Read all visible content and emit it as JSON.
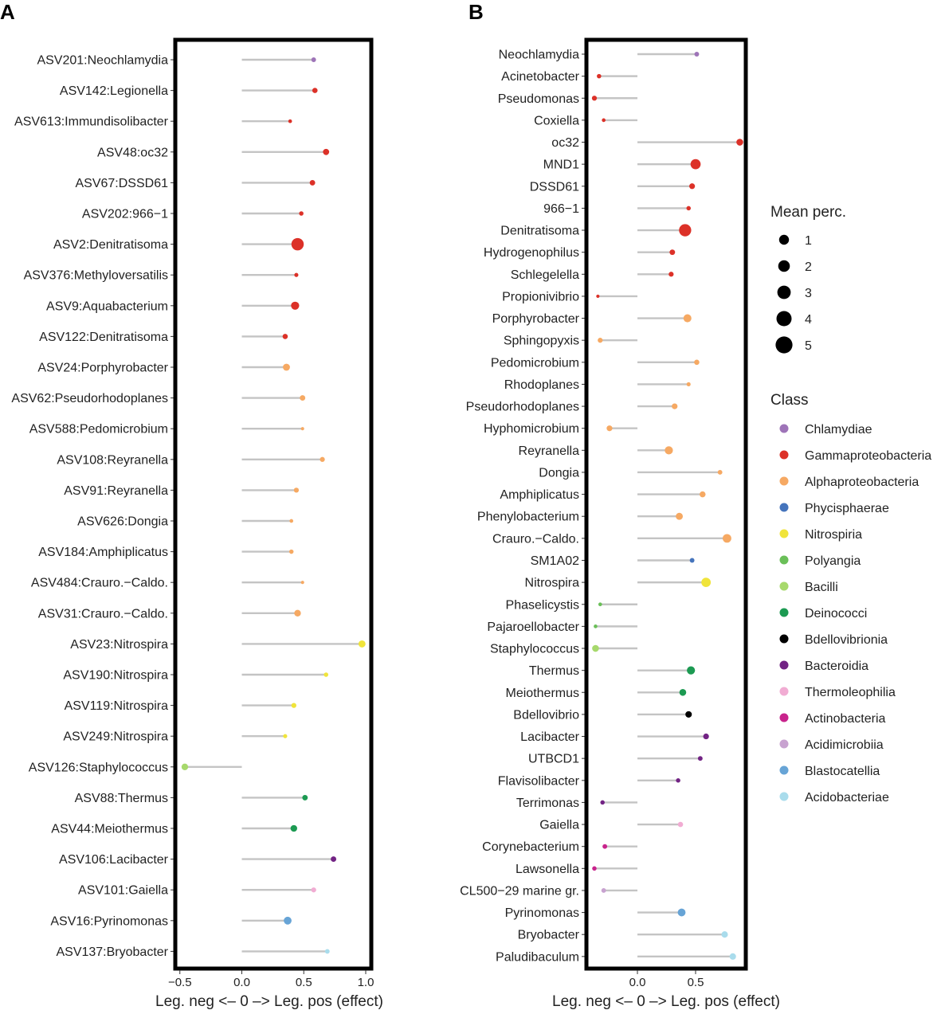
{
  "chart_data": [
    {
      "panel": "A",
      "type": "lollipop",
      "xlabel": "Leg. neg <– 0 –> Leg. pos (effect)",
      "ylabel": "",
      "xlim": [
        -0.55,
        1.05
      ],
      "xticks": [
        -0.5,
        0.0,
        0.5,
        1.0
      ],
      "xtick_labels": [
        "−0.5",
        "0.0",
        "0.5",
        "1.0"
      ],
      "legend": "none",
      "grid": false,
      "points": [
        {
          "label": "ASV201:Neochlamydia",
          "value": 0.58,
          "mean_perc": 0.8,
          "class": "Chlamydiae"
        },
        {
          "label": "ASV142:Legionella",
          "value": 0.59,
          "mean_perc": 1.0,
          "class": "Gammaproteobacteria"
        },
        {
          "label": "ASV613:Immundisolibacter",
          "value": 0.39,
          "mean_perc": 0.5,
          "class": "Gammaproteobacteria"
        },
        {
          "label": "ASV48:oc32",
          "value": 0.68,
          "mean_perc": 1.4,
          "class": "Gammaproteobacteria"
        },
        {
          "label": "ASV67:DSSD61",
          "value": 0.57,
          "mean_perc": 1.1,
          "class": "Gammaproteobacteria"
        },
        {
          "label": "ASV202:966−1",
          "value": 0.48,
          "mean_perc": 0.7,
          "class": "Gammaproteobacteria"
        },
        {
          "label": "ASV2:Denitratisoma",
          "value": 0.45,
          "mean_perc": 5.5,
          "class": "Gammaproteobacteria"
        },
        {
          "label": "ASV376:Methyloversatilis",
          "value": 0.44,
          "mean_perc": 0.6,
          "class": "Gammaproteobacteria"
        },
        {
          "label": "ASV9:Aquabacterium",
          "value": 0.43,
          "mean_perc": 2.4,
          "class": "Gammaproteobacteria"
        },
        {
          "label": "ASV122:Denitratisoma",
          "value": 0.35,
          "mean_perc": 1.0,
          "class": "Gammaproteobacteria"
        },
        {
          "label": "ASV24:Porphyrobacter",
          "value": 0.36,
          "mean_perc": 1.8,
          "class": "Alphaproteobacteria"
        },
        {
          "label": "ASV62:Pseudorhodoplanes",
          "value": 0.49,
          "mean_perc": 1.1,
          "class": "Alphaproteobacteria"
        },
        {
          "label": "ASV588:Pedomicrobium",
          "value": 0.49,
          "mean_perc": 0.4,
          "class": "Alphaproteobacteria"
        },
        {
          "label": "ASV108:Reyranella",
          "value": 0.65,
          "mean_perc": 0.9,
          "class": "Alphaproteobacteria"
        },
        {
          "label": "ASV91:Reyranella",
          "value": 0.44,
          "mean_perc": 0.9,
          "class": "Alphaproteobacteria"
        },
        {
          "label": "ASV626:Dongia",
          "value": 0.4,
          "mean_perc": 0.5,
          "class": "Alphaproteobacteria"
        },
        {
          "label": "ASV184:Amphiplicatus",
          "value": 0.4,
          "mean_perc": 0.7,
          "class": "Alphaproteobacteria"
        },
        {
          "label": "ASV484:Crauro.−Caldo.",
          "value": 0.49,
          "mean_perc": 0.4,
          "class": "Alphaproteobacteria"
        },
        {
          "label": "ASV31:Crauro.−Caldo.",
          "value": 0.45,
          "mean_perc": 1.6,
          "class": "Alphaproteobacteria"
        },
        {
          "label": "ASV23:Nitrospira",
          "value": 0.97,
          "mean_perc": 1.8,
          "class": "Nitrospiria"
        },
        {
          "label": "ASV190:Nitrospira",
          "value": 0.68,
          "mean_perc": 0.7,
          "class": "Nitrospiria"
        },
        {
          "label": "ASV119:Nitrospira",
          "value": 0.42,
          "mean_perc": 0.9,
          "class": "Nitrospiria"
        },
        {
          "label": "ASV249:Nitrospira",
          "value": 0.35,
          "mean_perc": 0.6,
          "class": "Nitrospiria"
        },
        {
          "label": "ASV126:Staphylococcus",
          "value": -0.46,
          "mean_perc": 1.6,
          "class": "Bacilli"
        },
        {
          "label": "ASV88:Thermus",
          "value": 0.51,
          "mean_perc": 1.1,
          "class": "Deinococci"
        },
        {
          "label": "ASV44:Meiothermus",
          "value": 0.42,
          "mean_perc": 1.6,
          "class": "Deinococci"
        },
        {
          "label": "ASV106:Lacibacter",
          "value": 0.74,
          "mean_perc": 1.1,
          "class": "Bacteroidia"
        },
        {
          "label": "ASV101:Gaiella",
          "value": 0.58,
          "mean_perc": 0.9,
          "class": "Thermoleophilia"
        },
        {
          "label": "ASV16:Pyrinomonas",
          "value": 0.37,
          "mean_perc": 2.2,
          "class": "Blastocatellia"
        },
        {
          "label": "ASV137:Bryobacter",
          "value": 0.69,
          "mean_perc": 0.8,
          "class": "Acidobacteriae"
        }
      ]
    },
    {
      "panel": "B",
      "type": "lollipop",
      "xlabel": "Leg. neg <– 0 –> Leg. pos (effect)",
      "ylabel": "",
      "xlim": [
        -0.45,
        0.95
      ],
      "xticks": [
        0.0,
        0.5
      ],
      "xtick_labels": [
        "0.0",
        "0.5"
      ],
      "legend": "right",
      "grid": false,
      "points": [
        {
          "label": "Neochlamydia",
          "value": 0.51,
          "mean_perc": 0.8,
          "class": "Chlamydiae"
        },
        {
          "label": "Acinetobacter",
          "value": -0.33,
          "mean_perc": 0.7,
          "class": "Gammaproteobacteria"
        },
        {
          "label": "Pseudomonas",
          "value": -0.37,
          "mean_perc": 0.9,
          "class": "Gammaproteobacteria"
        },
        {
          "label": "Coxiella",
          "value": -0.29,
          "mean_perc": 0.5,
          "class": "Gammaproteobacteria"
        },
        {
          "label": "oc32",
          "value": 0.88,
          "mean_perc": 1.7,
          "class": "Gammaproteobacteria"
        },
        {
          "label": "MND1",
          "value": 0.5,
          "mean_perc": 3.7,
          "class": "Gammaproteobacteria"
        },
        {
          "label": "DSSD61",
          "value": 0.47,
          "mean_perc": 1.2,
          "class": "Gammaproteobacteria"
        },
        {
          "label": "966−1",
          "value": 0.44,
          "mean_perc": 0.7,
          "class": "Gammaproteobacteria"
        },
        {
          "label": "Denitratisoma",
          "value": 0.41,
          "mean_perc": 5.4,
          "class": "Gammaproteobacteria"
        },
        {
          "label": "Hydrogenophilus",
          "value": 0.3,
          "mean_perc": 1.1,
          "class": "Gammaproteobacteria"
        },
        {
          "label": "Schlegelella",
          "value": 0.29,
          "mean_perc": 0.9,
          "class": "Gammaproteobacteria"
        },
        {
          "label": "Propionivibrio",
          "value": -0.34,
          "mean_perc": 0.4,
          "class": "Gammaproteobacteria"
        },
        {
          "label": "Porphyrobacter",
          "value": 0.43,
          "mean_perc": 2.3,
          "class": "Alphaproteobacteria"
        },
        {
          "label": "Sphingopyxis",
          "value": -0.32,
          "mean_perc": 0.9,
          "class": "Alphaproteobacteria"
        },
        {
          "label": "Pedomicrobium",
          "value": 0.51,
          "mean_perc": 1.0,
          "class": "Alphaproteobacteria"
        },
        {
          "label": "Rhodoplanes",
          "value": 0.44,
          "mean_perc": 0.6,
          "class": "Alphaproteobacteria"
        },
        {
          "label": "Pseudorhodoplanes",
          "value": 0.32,
          "mean_perc": 1.2,
          "class": "Alphaproteobacteria"
        },
        {
          "label": "Hyphomicrobium",
          "value": -0.24,
          "mean_perc": 1.2,
          "class": "Alphaproteobacteria"
        },
        {
          "label": "Reyranella",
          "value": 0.27,
          "mean_perc": 2.4,
          "class": "Alphaproteobacteria"
        },
        {
          "label": "Dongia",
          "value": 0.71,
          "mean_perc": 0.8,
          "class": "Alphaproteobacteria"
        },
        {
          "label": "Amphiplicatus",
          "value": 0.56,
          "mean_perc": 1.3,
          "class": "Alphaproteobacteria"
        },
        {
          "label": "Phenylobacterium",
          "value": 0.36,
          "mean_perc": 1.8,
          "class": "Alphaproteobacteria"
        },
        {
          "label": "Crauro.−Caldo.",
          "value": 0.77,
          "mean_perc": 2.7,
          "class": "Alphaproteobacteria"
        },
        {
          "label": "SM1A02",
          "value": 0.47,
          "mean_perc": 0.8,
          "class": "Phycisphaerae"
        },
        {
          "label": "Nitrospira",
          "value": 0.59,
          "mean_perc": 3.2,
          "class": "Nitrospiria"
        },
        {
          "label": "Phaselicystis",
          "value": -0.32,
          "mean_perc": 0.5,
          "class": "Polyangia"
        },
        {
          "label": "Pajaroellobacter",
          "value": -0.36,
          "mean_perc": 0.5,
          "class": "Polyangia"
        },
        {
          "label": "Staphylococcus",
          "value": -0.36,
          "mean_perc": 1.7,
          "class": "Bacilli"
        },
        {
          "label": "Thermus",
          "value": 0.46,
          "mean_perc": 2.4,
          "class": "Deinococci"
        },
        {
          "label": "Meiothermus",
          "value": 0.39,
          "mean_perc": 1.7,
          "class": "Deinococci"
        },
        {
          "label": "Bdellovibrio",
          "value": 0.44,
          "mean_perc": 1.5,
          "class": "Bdellovibrionia"
        },
        {
          "label": "Lacibacter",
          "value": 0.59,
          "mean_perc": 1.2,
          "class": "Bacteroidia"
        },
        {
          "label": "UTBCD1",
          "value": 0.54,
          "mean_perc": 0.8,
          "class": "Bacteroidia"
        },
        {
          "label": "Flavisolibacter",
          "value": 0.35,
          "mean_perc": 0.7,
          "class": "Bacteroidia"
        },
        {
          "label": "Terrimonas",
          "value": -0.3,
          "mean_perc": 0.7,
          "class": "Bacteroidia"
        },
        {
          "label": "Gaiella",
          "value": 0.37,
          "mean_perc": 1.0,
          "class": "Thermoleophilia"
        },
        {
          "label": "Corynebacterium",
          "value": -0.28,
          "mean_perc": 0.8,
          "class": "Actinobacteria"
        },
        {
          "label": "Lawsonella",
          "value": -0.37,
          "mean_perc": 0.7,
          "class": "Actinobacteria"
        },
        {
          "label": "CL500−29 marine gr.",
          "value": -0.29,
          "mean_perc": 0.8,
          "class": "Acidimicrobiia"
        },
        {
          "label": "Pyrinomonas",
          "value": 0.38,
          "mean_perc": 2.2,
          "class": "Blastocatellia"
        },
        {
          "label": "Bryobacter",
          "value": 0.75,
          "mean_perc": 1.5,
          "class": "Acidobacteriae"
        },
        {
          "label": "Paludibaculum",
          "value": 0.82,
          "mean_perc": 1.5,
          "class": "Acidobacteriae"
        }
      ]
    }
  ],
  "legend": {
    "size_title": "Mean perc.",
    "sizes": [
      {
        "label": "1",
        "value": 1
      },
      {
        "label": "2",
        "value": 2
      },
      {
        "label": "3",
        "value": 3
      },
      {
        "label": "4",
        "value": 4
      },
      {
        "label": "5",
        "value": 5
      }
    ],
    "class_title": "Class",
    "classes": [
      {
        "name": "Chlamydiae",
        "color": "#9E74B8"
      },
      {
        "name": "Gammaproteobacteria",
        "color": "#DC3128"
      },
      {
        "name": "Alphaproteobacteria",
        "color": "#F6A963"
      },
      {
        "name": "Phycisphaerae",
        "color": "#4574BC"
      },
      {
        "name": "Nitrospiria",
        "color": "#F0E43A"
      },
      {
        "name": "Polyangia",
        "color": "#6ABF58"
      },
      {
        "name": "Bacilli",
        "color": "#A7D96C"
      },
      {
        "name": "Deinococci",
        "color": "#1C9A52"
      },
      {
        "name": "Bdellovibrionia",
        "color": "#000000"
      },
      {
        "name": "Bacteroidia",
        "color": "#722384"
      },
      {
        "name": "Thermoleophilia",
        "color": "#F1ACD3"
      },
      {
        "name": "Actinobacteria",
        "color": "#C8238C"
      },
      {
        "name": "Acidimicrobiia",
        "color": "#C8A2D0"
      },
      {
        "name": "Blastocatellia",
        "color": "#67A4D6"
      },
      {
        "name": "Acidobacteriae",
        "color": "#A9DCEC"
      }
    ]
  },
  "style": {
    "stem_color": "#C4C4C4",
    "frame_color": "#000000"
  }
}
